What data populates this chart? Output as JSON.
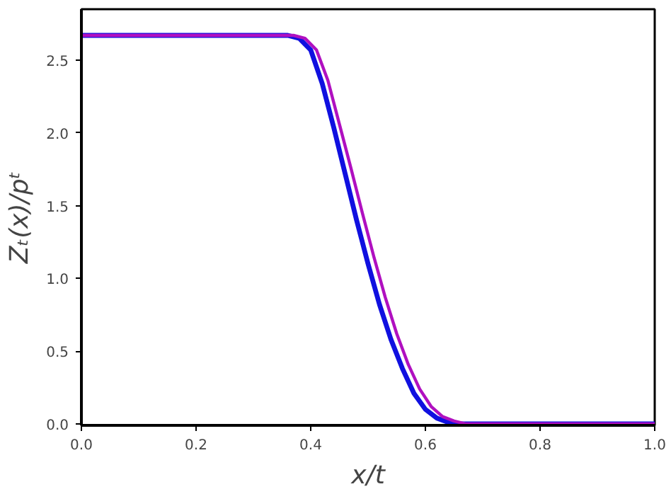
{
  "chart_data": {
    "type": "line",
    "xlabel": "x/t",
    "ylabel": "Zₜ(x)/pᵗ",
    "xlim": [
      0,
      1
    ],
    "ylim": [
      -0.01,
      2.85
    ],
    "xticks": [
      {
        "value": 0,
        "label": "0.0"
      },
      0.2,
      0.4,
      0.6,
      0.8,
      {
        "value": 1,
        "label": "1.0"
      }
    ],
    "yticks": [
      {
        "value": 0,
        "label": "0.0"
      },
      0.5,
      {
        "value": 1,
        "label": "1.0"
      },
      1.5,
      {
        "value": 2,
        "label": "2.0"
      },
      2.5
    ],
    "marker": "none",
    "line_style": "solid",
    "series": [
      {
        "color": "#1010e0",
        "x": [
          0,
          0.3,
          0.36,
          0.38,
          0.4,
          0.42,
          0.44,
          0.46,
          0.48,
          0.5,
          0.52,
          0.54,
          0.56,
          0.58,
          0.6,
          0.62,
          0.64,
          0.66,
          0.7,
          1.0
        ],
        "values": [
          2.67,
          2.67,
          2.67,
          2.65,
          2.57,
          2.34,
          2.04,
          1.72,
          1.4,
          1.1,
          0.82,
          0.58,
          0.38,
          0.21,
          0.1,
          0.04,
          0.01,
          0,
          0,
          0
        ]
      },
      {
        "color": "#b010c0",
        "x": [
          0,
          0.3,
          0.37,
          0.39,
          0.41,
          0.43,
          0.45,
          0.47,
          0.49,
          0.51,
          0.53,
          0.55,
          0.57,
          0.59,
          0.61,
          0.63,
          0.65,
          0.67,
          0.7,
          1.0
        ],
        "values": [
          2.67,
          2.67,
          2.67,
          2.65,
          2.57,
          2.36,
          2.06,
          1.76,
          1.45,
          1.15,
          0.87,
          0.62,
          0.41,
          0.24,
          0.12,
          0.05,
          0.02,
          0,
          0,
          0
        ]
      }
    ]
  }
}
